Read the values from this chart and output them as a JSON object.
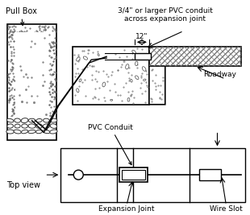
{
  "bg_color": "#ffffff",
  "line_color": "#000000",
  "labels": {
    "pull_box": "Pull Box",
    "pvc_label": "3/4\" or larger PVC conduit\nacross expansion joint",
    "twelve_in": "12\"",
    "roadway": "Roadway",
    "pvc_conduit": "PVC Conduit",
    "top_view": "Top view",
    "expansion_joint": "Expansion Joint",
    "wire_slot": "Wire Slot"
  },
  "font_size": 6.5,
  "fig_bg": "#ffffff"
}
